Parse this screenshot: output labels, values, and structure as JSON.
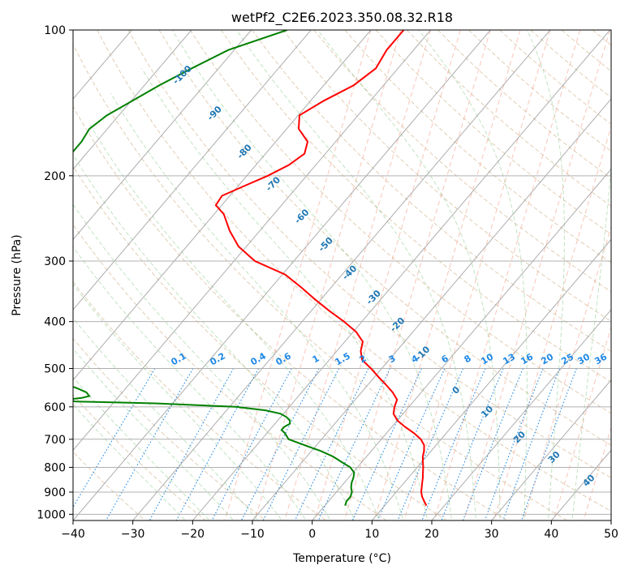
{
  "chart_data": {
    "type": "line",
    "title": "wetPf2_C2E6.2023.350.08.32.R18",
    "xlabel": "Temperature (°C)",
    "ylabel": "Pressure (hPa)",
    "xlim": [
      -40,
      50
    ],
    "ylim": [
      1030,
      100
    ],
    "x_ticks": [
      -40,
      -30,
      -20,
      -10,
      0,
      10,
      20,
      30,
      40,
      50
    ],
    "x_tick_labels": [
      "−40",
      "−30",
      "−20",
      "−10",
      "0",
      "10",
      "20",
      "30",
      "40",
      "50"
    ],
    "y_ticks": [
      100,
      200,
      300,
      400,
      500,
      600,
      700,
      800,
      900,
      1000
    ],
    "y_tick_labels": [
      "100",
      "200",
      "300",
      "400",
      "500",
      "600",
      "700",
      "800",
      "900",
      "1000"
    ],
    "series": [
      {
        "name": "Temperature",
        "color": "#ff0000",
        "points": [
          [
            -54.5,
            100
          ],
          [
            -54.5,
            110
          ],
          [
            -53.7,
            120
          ],
          [
            -55.0,
            130
          ],
          [
            -57.8,
            140
          ],
          [
            -59.8,
            150
          ],
          [
            -58.0,
            160
          ],
          [
            -54.7,
            170
          ],
          [
            -53.5,
            180
          ],
          [
            -54.5,
            190
          ],
          [
            -56.5,
            200
          ],
          [
            -59.0,
            210
          ],
          [
            -61.3,
            220
          ],
          [
            -61.0,
            230
          ],
          [
            -58.4,
            240
          ],
          [
            -55.0,
            260
          ],
          [
            -51.3,
            280
          ],
          [
            -46.5,
            300
          ],
          [
            -39.5,
            320
          ],
          [
            -35.0,
            340
          ],
          [
            -31.0,
            360
          ],
          [
            -27.0,
            380
          ],
          [
            -23.0,
            400
          ],
          [
            -19.5,
            420
          ],
          [
            -17.0,
            440
          ],
          [
            -16.0,
            460
          ],
          [
            -14.5,
            480
          ],
          [
            -11.8,
            500
          ],
          [
            -9.4,
            520
          ],
          [
            -7.0,
            540
          ],
          [
            -4.8,
            560
          ],
          [
            -3.0,
            580
          ],
          [
            -2.4,
            600
          ],
          [
            -1.6,
            620
          ],
          [
            0.0,
            640
          ],
          [
            2.2,
            660
          ],
          [
            4.6,
            680
          ],
          [
            6.6,
            700
          ],
          [
            8.0,
            720
          ],
          [
            8.8,
            740
          ],
          [
            9.4,
            760
          ],
          [
            10.2,
            780
          ],
          [
            11.0,
            800
          ],
          [
            11.7,
            820
          ],
          [
            12.4,
            840
          ],
          [
            13.0,
            860
          ],
          [
            13.6,
            880
          ],
          [
            14.2,
            900
          ],
          [
            15.0,
            920
          ],
          [
            16.0,
            940
          ],
          [
            17.0,
            960
          ]
        ]
      },
      {
        "name": "Dewpoint",
        "color": "#008000",
        "points": [
          [
            -74.0,
            100
          ],
          [
            -81.0,
            110
          ],
          [
            -84.5,
            120
          ],
          [
            -87.5,
            130
          ],
          [
            -89.8,
            140
          ],
          [
            -92.0,
            150
          ],
          [
            -93.0,
            160
          ],
          [
            -92.5,
            170
          ],
          [
            -92.5,
            180
          ],
          [
            -93.2,
            190
          ],
          [
            -92.5,
            200
          ],
          [
            -91.5,
            210
          ],
          [
            -91.0,
            220
          ],
          [
            -90.0,
            230
          ],
          [
            -88.5,
            240
          ],
          [
            -86.0,
            255
          ],
          [
            -84.0,
            265
          ],
          [
            -84.0,
            275
          ],
          [
            -83.5,
            285
          ],
          [
            -80.5,
            300
          ],
          [
            -82.5,
            310
          ],
          [
            -92.0,
            320
          ],
          [
            -92.0,
            330
          ],
          [
            -92.5,
            340
          ],
          [
            -93.5,
            350
          ],
          [
            -93.5,
            360
          ],
          [
            -93.5,
            370
          ],
          [
            -92.5,
            380
          ],
          [
            -92.0,
            390
          ],
          [
            -93.5,
            400
          ],
          [
            -94.0,
            410
          ],
          [
            -58.0,
            550
          ],
          [
            -56.0,
            560
          ],
          [
            -55.0,
            570
          ],
          [
            -56.0,
            575
          ],
          [
            -58.5,
            580
          ],
          [
            -56.5,
            585
          ],
          [
            -43.0,
            590
          ],
          [
            -29.0,
            600
          ],
          [
            -23.5,
            610
          ],
          [
            -20.5,
            620
          ],
          [
            -19.0,
            630
          ],
          [
            -18.0,
            640
          ],
          [
            -17.5,
            650
          ],
          [
            -18.0,
            660
          ],
          [
            -18.0,
            670
          ],
          [
            -17.0,
            680
          ],
          [
            -15.5,
            700
          ],
          [
            -12.0,
            720
          ],
          [
            -8.5,
            740
          ],
          [
            -5.6,
            760
          ],
          [
            -3.4,
            780
          ],
          [
            -1.2,
            800
          ],
          [
            0.2,
            820
          ],
          [
            0.8,
            840
          ],
          [
            1.2,
            860
          ],
          [
            1.8,
            880
          ],
          [
            2.6,
            900
          ],
          [
            3.0,
            920
          ],
          [
            3.0,
            940
          ],
          [
            3.4,
            960
          ]
        ]
      }
    ],
    "dry_adiabat_labels": [
      "-100",
      "-90",
      "-80",
      "-70",
      "-60",
      "-50",
      "-40",
      "-30",
      "-20",
      "-10",
      "0",
      "10",
      "20",
      "30",
      "40"
    ],
    "moist_adiabat_labels": [
      "10",
      "20",
      "30",
      "40"
    ],
    "mixing_ratio_labels": [
      "0.1",
      "0.2",
      "0.4",
      "0.6",
      "1",
      "1.5",
      "2",
      "3",
      "4",
      "6",
      "8",
      "10",
      "13",
      "16",
      "20",
      "25",
      "30",
      "36"
    ],
    "grid": true
  }
}
